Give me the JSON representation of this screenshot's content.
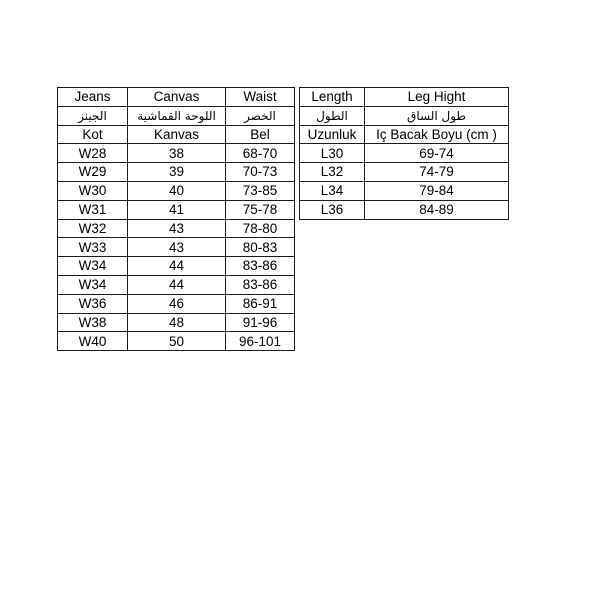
{
  "colors": {
    "background": "#ffffff",
    "border": "#1b1b1b",
    "text": "#000000"
  },
  "jeans_table": {
    "headers": {
      "en": [
        "Jeans",
        "Canvas",
        "Waist"
      ],
      "ar": [
        "الجينز",
        "اللوحة القماشية",
        "الخصر"
      ],
      "tr": [
        "Kot",
        "Kanvas",
        "Bel"
      ]
    },
    "rows": [
      [
        "W28",
        "38",
        "68-70"
      ],
      [
        "W29",
        "39",
        "70-73"
      ],
      [
        "W30",
        "40",
        "73-85"
      ],
      [
        "W31",
        "41",
        "75-78"
      ],
      [
        "W32",
        "43",
        "78-80"
      ],
      [
        "W33",
        "43",
        "80-83"
      ],
      [
        "W34",
        "44",
        "83-86"
      ],
      [
        "W34",
        "44",
        "83-86"
      ],
      [
        "W36",
        "46",
        "86-91"
      ],
      [
        "W38",
        "48",
        "91-96"
      ],
      [
        "W40",
        "50",
        "96-101"
      ]
    ]
  },
  "length_table": {
    "headers": {
      "en": [
        "Length",
        "Leg Hight"
      ],
      "ar": [
        "الطول",
        "طول الساق"
      ],
      "tr": [
        "Uzunluk",
        "Iç Bacak Boyu (cm )"
      ]
    },
    "rows": [
      [
        "L30",
        "69-74"
      ],
      [
        "L32",
        "74-79"
      ],
      [
        "L34",
        "79-84"
      ],
      [
        "L36",
        "84-89"
      ]
    ]
  }
}
